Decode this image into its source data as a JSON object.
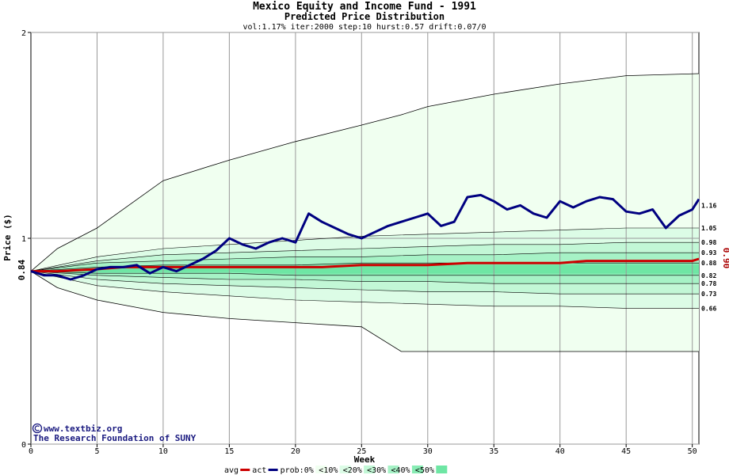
{
  "header": {
    "title": "Mexico Equity and Income Fund - 1991",
    "subtitle": "Predicted Price Distribution",
    "params": "vol:1.17% iter:2000 step:10 hurst:0.57 drift:0.07/0"
  },
  "credit": {
    "line1": "www.textbiz.org",
    "line2": "The Research Foundation of SUNY",
    "icon": "copyright-icon"
  },
  "colors": {
    "background": "#ffffff",
    "plot_band_outer": "#f0fff0",
    "band_10": "#dcfce6",
    "band_20": "#c2f7d6",
    "band_30": "#a6f2c6",
    "band_40": "#88ecb4",
    "band_50": "#6ee6a4",
    "avg_line": "#cc0000",
    "actual_line": "#000080",
    "right_label_red": "#aa0000"
  },
  "chart_data": {
    "type": "line",
    "title": "Mexico Equity and Income Fund - 1991",
    "subtitle": "Predicted Price Distribution",
    "xlabel": "Week",
    "ylabel": "Price ($)",
    "xlim": [
      0,
      50.5
    ],
    "ylim": [
      0,
      2
    ],
    "x_ticks": [
      0,
      5,
      10,
      15,
      20,
      25,
      30,
      35,
      40,
      45,
      50
    ],
    "y_ticks": [
      0,
      1,
      2
    ],
    "grid": true,
    "start_price_label": "0.84",
    "end_avg_label": "0.90",
    "start_price": 0.84,
    "end_avg": 0.9,
    "band_levels_at_end": [
      "1.16",
      "1.05",
      "0.98",
      "0.93",
      "0.88",
      "0.82",
      "0.78",
      "0.73",
      "0.66"
    ],
    "envelope": {
      "x": [
        0,
        2,
        5,
        10,
        15,
        20,
        25,
        28,
        30,
        35,
        40,
        45,
        50.5
      ],
      "upper": [
        0.84,
        0.95,
        1.05,
        1.28,
        1.38,
        1.47,
        1.55,
        1.6,
        1.64,
        1.7,
        1.75,
        1.79,
        1.8
      ],
      "lower": [
        0.84,
        0.76,
        0.7,
        0.64,
        0.61,
        0.59,
        0.57,
        0.45,
        0.45,
        0.45,
        0.45,
        0.45,
        0.45
      ]
    },
    "band_edges": {
      "x": [
        0,
        5,
        10,
        15,
        20,
        25,
        30,
        35,
        40,
        45,
        50.5
      ],
      "p95": [
        0.84,
        0.91,
        0.95,
        0.97,
        0.99,
        1.01,
        1.02,
        1.03,
        1.04,
        1.05,
        1.05
      ],
      "p90": [
        0.84,
        0.89,
        0.92,
        0.93,
        0.94,
        0.95,
        0.96,
        0.97,
        0.97,
        0.98,
        0.98
      ],
      "p80": [
        0.84,
        0.88,
        0.89,
        0.9,
        0.91,
        0.91,
        0.92,
        0.92,
        0.93,
        0.93,
        0.93
      ],
      "p70": [
        0.84,
        0.86,
        0.87,
        0.87,
        0.87,
        0.88,
        0.88,
        0.88,
        0.88,
        0.88,
        0.88
      ],
      "p30": [
        0.84,
        0.83,
        0.83,
        0.83,
        0.82,
        0.82,
        0.82,
        0.82,
        0.82,
        0.82,
        0.82
      ],
      "p20": [
        0.84,
        0.82,
        0.81,
        0.8,
        0.8,
        0.79,
        0.79,
        0.78,
        0.78,
        0.78,
        0.78
      ],
      "p10": [
        0.84,
        0.8,
        0.78,
        0.77,
        0.76,
        0.75,
        0.74,
        0.74,
        0.73,
        0.73,
        0.73
      ],
      "p5": [
        0.84,
        0.77,
        0.74,
        0.72,
        0.7,
        0.69,
        0.68,
        0.67,
        0.67,
        0.66,
        0.66
      ]
    },
    "series": [
      {
        "name": "avg",
        "x": [
          0,
          2,
          5,
          7,
          10,
          15,
          20,
          22,
          25,
          30,
          33,
          35,
          40,
          42,
          45,
          50,
          50.5
        ],
        "y": [
          0.84,
          0.84,
          0.85,
          0.86,
          0.86,
          0.86,
          0.86,
          0.86,
          0.87,
          0.87,
          0.88,
          0.88,
          0.88,
          0.89,
          0.89,
          0.89,
          0.9
        ]
      },
      {
        "name": "act",
        "x": [
          0,
          1,
          2,
          3,
          4,
          5,
          6,
          7,
          8,
          9,
          10,
          11,
          12,
          13,
          14,
          15,
          16,
          17,
          18,
          19,
          20,
          21,
          22,
          23,
          24,
          25,
          26,
          27,
          28,
          29,
          30,
          31,
          32,
          33,
          34,
          35,
          36,
          37,
          38,
          39,
          40,
          41,
          42,
          43,
          44,
          45,
          46,
          47,
          48,
          49,
          50,
          50.5
        ],
        "y": [
          0.84,
          0.82,
          0.82,
          0.8,
          0.82,
          0.85,
          0.86,
          0.86,
          0.87,
          0.83,
          0.86,
          0.84,
          0.87,
          0.9,
          0.94,
          1.0,
          0.97,
          0.95,
          0.98,
          1.0,
          0.98,
          1.12,
          1.08,
          1.05,
          1.02,
          1.0,
          1.03,
          1.06,
          1.08,
          1.1,
          1.12,
          1.06,
          1.08,
          1.2,
          1.21,
          1.18,
          1.14,
          1.16,
          1.12,
          1.1,
          1.18,
          1.15,
          1.18,
          1.2,
          1.19,
          1.13,
          1.12,
          1.14,
          1.05,
          1.11,
          1.14,
          1.19
        ]
      }
    ]
  },
  "legend": {
    "items": [
      {
        "label": "avg",
        "kind": "line",
        "color": "#cc0000"
      },
      {
        "label": "act",
        "kind": "line",
        "color": "#000080"
      },
      {
        "label": "prob:0%",
        "kind": "swatch",
        "color": "#f0fff0"
      },
      {
        "label": "<10%",
        "kind": "swatch",
        "color": "#dcfce6"
      },
      {
        "label": "<20%",
        "kind": "swatch",
        "color": "#c2f7d6"
      },
      {
        "label": "<30%",
        "kind": "swatch",
        "color": "#a6f2c6"
      },
      {
        "label": "<40%",
        "kind": "swatch",
        "color": "#88ecb4"
      },
      {
        "label": "<50%",
        "kind": "swatch",
        "color": "#6ee6a4"
      }
    ]
  }
}
